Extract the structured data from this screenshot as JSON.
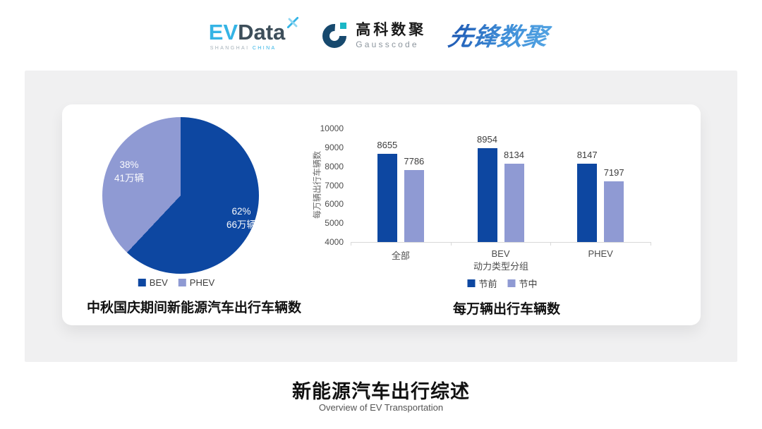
{
  "header": {
    "evdata": {
      "ev": "EV",
      "data": "Data",
      "sub_left": "SHANGHAI",
      "sub_right": "CHINA"
    },
    "gausscode": {
      "name_cn": "高科数聚",
      "name_en": "Gausscode"
    },
    "pioneer": {
      "name": "先锋数聚"
    }
  },
  "colors": {
    "series_dark": "#0d47a1",
    "series_light": "#8f9ad3",
    "panel_bg": "#f0f0f1",
    "card_bg": "#ffffff",
    "evdata_blue": "#35b4e5",
    "evdata_dark": "#3d4e5a",
    "gauss_dark": "#17496e",
    "gauss_teal": "#1ab7c6",
    "pioneer_blue": "#2b6cc4",
    "axis_line": "#d9d9d9"
  },
  "chart_data": [
    {
      "type": "pie",
      "title": "中秋国庆期间新能源汽车出行车辆数",
      "start_angle": "top",
      "direction": "clockwise",
      "legend_position": "bottom",
      "slices": [
        {
          "label": "BEV",
          "percent": 62,
          "pct_label": "62%",
          "value_label": "66万辆",
          "color": "#0d47a1"
        },
        {
          "label": "PHEV",
          "percent": 38,
          "pct_label": "38%",
          "value_label": "41万辆",
          "color": "#8f9ad3"
        }
      ]
    },
    {
      "type": "bar",
      "title": "每万辆出行车辆数",
      "categories": [
        "全部",
        "BEV",
        "PHEV"
      ],
      "series": [
        {
          "name": "节前",
          "color": "#0d47a1",
          "values": [
            8655,
            8954,
            8147
          ]
        },
        {
          "name": "节中",
          "color": "#8f9ad3",
          "values": [
            7786,
            8134,
            7197
          ]
        }
      ],
      "xlabel": "动力类型分组",
      "ylabel": "每万辆出行车辆数",
      "ylim": [
        4000,
        10000
      ],
      "ytick_step": 1000,
      "grid": false,
      "value_labels": true,
      "legend_position": "bottom"
    }
  ],
  "footer": {
    "title": "新能源汽车出行综述",
    "subtitle": "Overview of EV Transportation"
  }
}
